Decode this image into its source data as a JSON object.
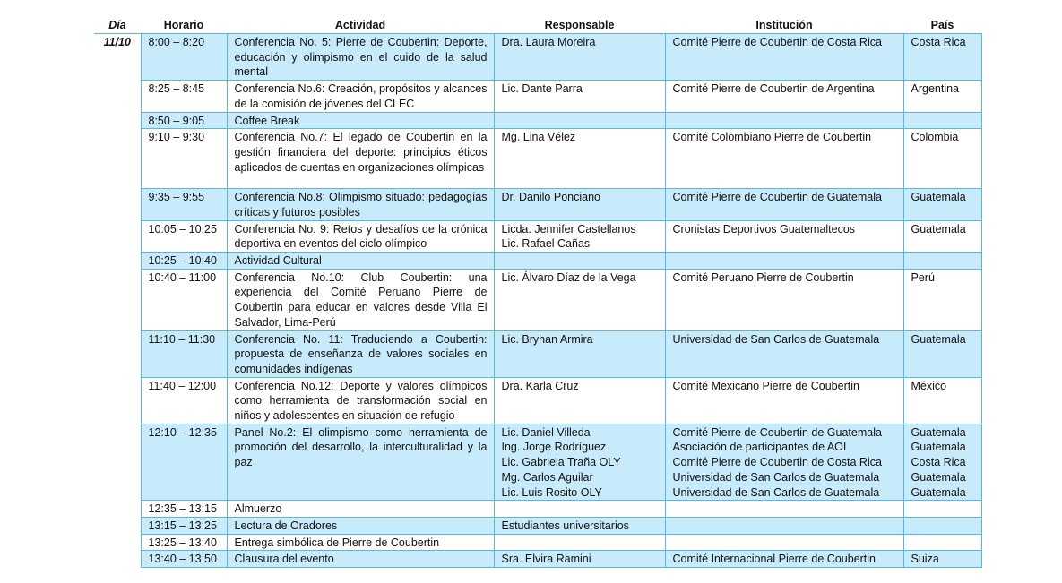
{
  "headers": {
    "dia": "Día",
    "horario": "Horario",
    "actividad": "Actividad",
    "responsable": "Responsable",
    "institucion": "Institución",
    "pais": "País"
  },
  "colors": {
    "shade": "#c8ebfb",
    "border": "#5ab6e2"
  },
  "rows": [
    {
      "dia": "11/10",
      "horario": "8:00 – 8:20",
      "actividad": "Conferencia No. 5: Pierre de Coubertin: Deporte, educación y olimpismo en el cuido de la salud mental",
      "responsable": [
        "Dra. Laura Moreira"
      ],
      "institucion": [
        "Comité Pierre de Coubertin de Costa Rica"
      ],
      "pais": [
        "Costa Rica"
      ]
    },
    {
      "horario": "8:25 – 8:45",
      "actividad": "Conferencia No.6: Creación, propósitos y alcances de la comisión de jóvenes del CLEC",
      "responsable": [
        "Lic. Dante Parra"
      ],
      "institucion": [
        "Comité Pierre de Coubertin de Argentina"
      ],
      "pais": [
        "Argentina"
      ]
    },
    {
      "horario": "8:50 – 9:05",
      "actividad": "Coffee Break",
      "responsable": [],
      "institucion": [],
      "pais": []
    },
    {
      "horario": "9:10 – 9:30",
      "actividad": "Conferencia No.7: El legado de Coubertin en la gestión financiera del deporte: principios éticos aplicados de cuentas en organizaciones olímpicas",
      "responsable": [
        "Mg. Lina Vélez"
      ],
      "institucion": [
        "Comité Colombiano Pierre de Coubertin"
      ],
      "pais": [
        "Colombia"
      ]
    },
    {
      "horario": "9:35 – 9:55",
      "actividad": "Conferencia No.8: Olimpismo situado: pedagogías críticas y futuros posibles",
      "responsable": [
        "Dr. Danilo Ponciano"
      ],
      "institucion": [
        "Comité Pierre de Coubertin de Guatemala"
      ],
      "pais": [
        "Guatemala"
      ]
    },
    {
      "horario": "10:05 – 10:25",
      "actividad": "Conferencia No. 9: Retos y desafíos de la crónica deportiva en eventos del ciclo olímpico",
      "responsable": [
        "Licda. Jennifer Castellanos",
        "Lic. Rafael Cañas"
      ],
      "institucion": [
        "Cronistas Deportivos Guatemaltecos"
      ],
      "pais": [
        "Guatemala"
      ]
    },
    {
      "horario": "10:25 – 10:40",
      "actividad": "Actividad Cultural",
      "responsable": [],
      "institucion": [],
      "pais": []
    },
    {
      "horario": "10:40 – 11:00",
      "actividad": "Conferencia No.10: Club Coubertin: una experiencia del Comité Peruano Pierre de Coubertin para educar en valores desde Villa El Salvador, Lima-Perú",
      "responsable": [
        "Lic. Álvaro Díaz de la Vega"
      ],
      "institucion": [
        "Comité Peruano Pierre de Coubertin"
      ],
      "pais": [
        "Perú"
      ]
    },
    {
      "horario": "11:10 – 11:30",
      "actividad": "Conferencia No. 11: Traduciendo a Coubertin: propuesta de enseñanza de valores sociales en comunidades indígenas",
      "responsable": [
        "Lic. Bryhan Armira"
      ],
      "institucion": [
        "Universidad de San Carlos de Guatemala"
      ],
      "pais": [
        "Guatemala"
      ]
    },
    {
      "horario": "11:40 – 12:00",
      "actividad": "Conferencia No.12: Deporte y valores olímpicos como herramienta de transformación social en niños y adolescentes en situación de refugio",
      "responsable": [
        "Dra. Karla Cruz"
      ],
      "institucion": [
        "Comité Mexicano Pierre de Coubertin"
      ],
      "pais": [
        "México"
      ]
    },
    {
      "horario": "12:10 – 12:35",
      "actividad": "Panel No.2: El olimpismo como herramienta de promoción del desarrollo, la interculturalidad y la paz",
      "responsable": [
        "Lic. Daniel Villeda",
        "Ing. Jorge Rodríguez",
        "Lic. Gabriela Traña OLY",
        "Mg. Carlos Aguilar",
        "Lic. Luis Rosito OLY"
      ],
      "institucion": [
        "Comité Pierre de Coubertin de Guatemala",
        "Asociación de participantes de AOI",
        "Comité Pierre de Coubertin de Costa Rica",
        "Universidad de San Carlos de Guatemala",
        "Universidad de San Carlos de Guatemala"
      ],
      "pais": [
        "Guatemala",
        "Guatemala",
        "Costa Rica",
        "Guatemala",
        "Guatemala"
      ]
    },
    {
      "horario": "12:35 – 13:15",
      "actividad": "Almuerzo",
      "responsable": [],
      "institucion": [],
      "pais": []
    },
    {
      "horario": "13:15 – 13:25",
      "actividad": "Lectura de Oradores",
      "responsable": [
        "Estudiantes universitarios"
      ],
      "institucion": [],
      "pais": []
    },
    {
      "horario": "13:25 – 13:40",
      "actividad": "Entrega simbólica de Pierre de Coubertin",
      "responsable": [],
      "institucion": [],
      "pais": []
    },
    {
      "horario": "13:40 – 13:50",
      "actividad": "Clausura del evento",
      "responsable": [
        "Sra. Elvira Ramini"
      ],
      "institucion": [
        "Comité Internacional Pierre de Coubertin"
      ],
      "pais": [
        "Suiza"
      ]
    }
  ]
}
